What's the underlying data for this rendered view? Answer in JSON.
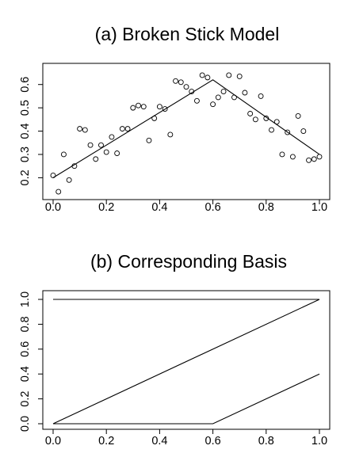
{
  "chart_data": [
    {
      "type": "scatter",
      "title": "(a) Broken Stick Model",
      "xlim": [
        0,
        1
      ],
      "ylim": [
        0.13,
        0.65
      ],
      "x_ticks": [
        "0.0",
        "0.2",
        "0.4",
        "0.6",
        "0.8",
        "1.0"
      ],
      "y_ticks": [
        "0.2",
        "0.3",
        "0.4",
        "0.5",
        "0.6"
      ],
      "grid": false,
      "points": {
        "x": [
          0.0,
          0.02,
          0.04,
          0.06,
          0.08,
          0.1,
          0.12,
          0.14,
          0.16,
          0.18,
          0.2,
          0.22,
          0.24,
          0.26,
          0.28,
          0.3,
          0.32,
          0.34,
          0.36,
          0.38,
          0.4,
          0.42,
          0.44,
          0.46,
          0.48,
          0.5,
          0.52,
          0.54,
          0.56,
          0.58,
          0.6,
          0.62,
          0.64,
          0.66,
          0.68,
          0.7,
          0.72,
          0.74,
          0.76,
          0.78,
          0.8,
          0.82,
          0.84,
          0.86,
          0.88,
          0.9,
          0.92,
          0.94,
          0.96,
          0.98,
          1.0
        ],
        "y": [
          0.21,
          0.14,
          0.3,
          0.19,
          0.25,
          0.41,
          0.405,
          0.34,
          0.28,
          0.34,
          0.31,
          0.375,
          0.305,
          0.41,
          0.41,
          0.5,
          0.51,
          0.505,
          0.36,
          0.455,
          0.505,
          0.495,
          0.385,
          0.615,
          0.61,
          0.59,
          0.57,
          0.53,
          0.64,
          0.63,
          0.515,
          0.545,
          0.57,
          0.64,
          0.545,
          0.635,
          0.565,
          0.475,
          0.45,
          0.55,
          0.455,
          0.405,
          0.44,
          0.3,
          0.395,
          0.29,
          0.465,
          0.4,
          0.275,
          0.28,
          0.29
        ]
      },
      "series": [
        {
          "x": [
            0.0,
            0.6,
            1.0
          ],
          "y": [
            0.2,
            0.62,
            0.3
          ]
        }
      ]
    },
    {
      "type": "line",
      "title": "(b) Corresponding Basis",
      "xlim": [
        0,
        1
      ],
      "ylim": [
        0,
        1
      ],
      "x_ticks": [
        "0.0",
        "0.2",
        "0.4",
        "0.6",
        "0.8",
        "1.0"
      ],
      "y_ticks": [
        "0.0",
        "0.2",
        "0.4",
        "0.6",
        "0.8",
        "1.0"
      ],
      "grid": false,
      "series": [
        {
          "x": [
            0.0,
            1.0
          ],
          "y": [
            1.0,
            1.0
          ]
        },
        {
          "x": [
            0.0,
            1.0
          ],
          "y": [
            0.0,
            1.0
          ]
        },
        {
          "x": [
            0.0,
            0.6,
            1.0
          ],
          "y": [
            0.0,
            0.0,
            0.4
          ]
        }
      ]
    }
  ]
}
